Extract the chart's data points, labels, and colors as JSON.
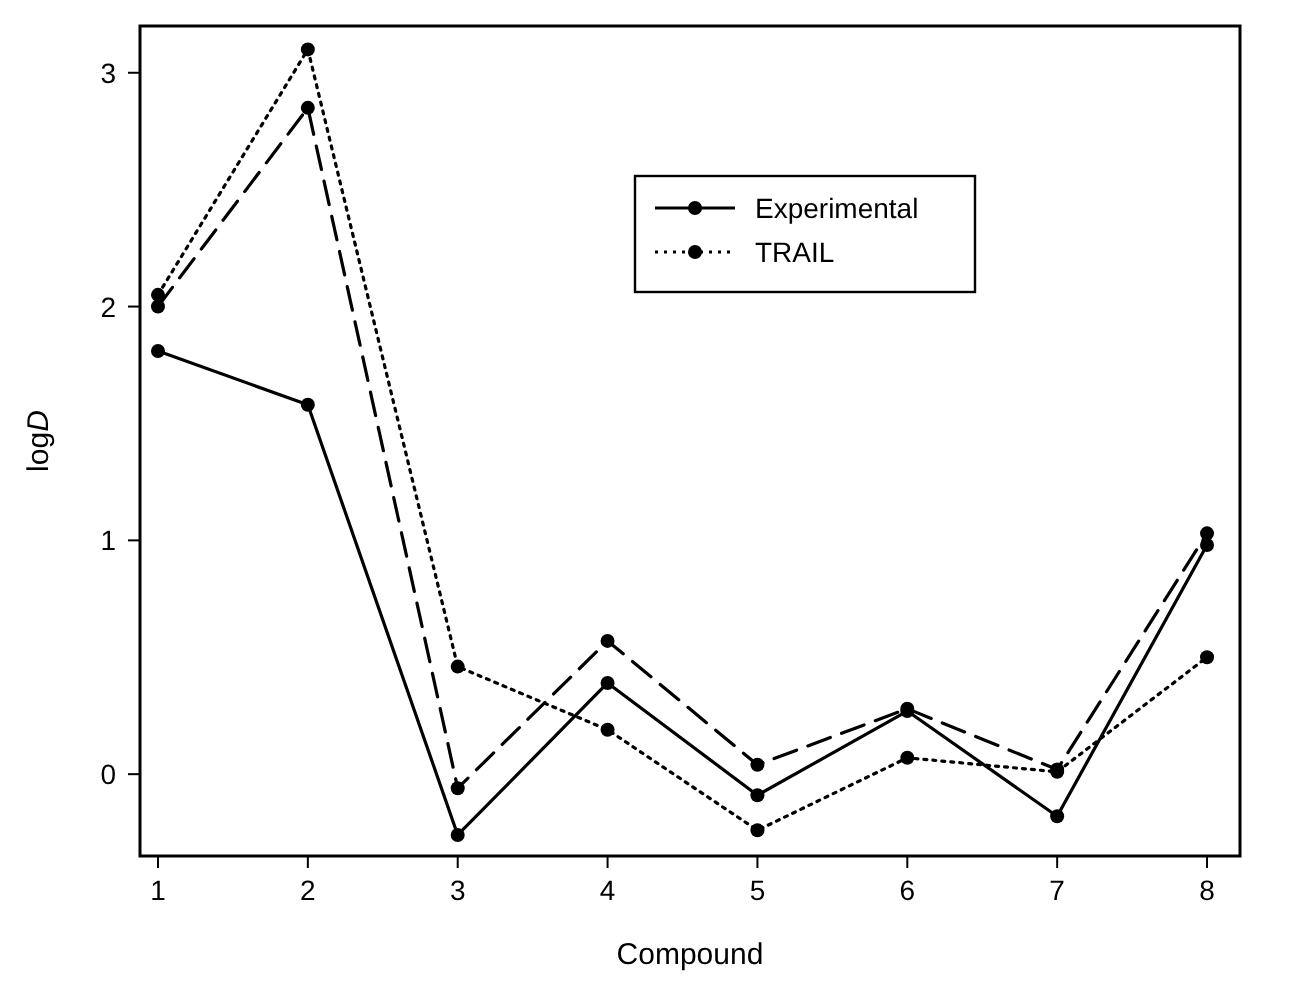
{
  "chart_data": {
    "type": "line",
    "xlabel": "Compound",
    "ylabel": "log$_{}$D",
    "x": [
      1,
      2,
      3,
      4,
      5,
      6,
      7,
      8
    ],
    "xlim": [
      0.88,
      8.22
    ],
    "xticks": [
      1,
      2,
      3,
      4,
      5,
      6,
      7,
      8
    ],
    "ylim": [
      -0.35,
      3.2
    ],
    "yticks": [
      0,
      1,
      2,
      3
    ],
    "legend": "top right",
    "grid": false,
    "marker": "circle",
    "series": [
      {
        "name": "Experimental",
        "color": "#000000",
        "line_style": "solid",
        "values": [
          1.81,
          1.58,
          -0.26,
          0.39,
          -0.09,
          0.27,
          -0.18,
          0.98
        ]
      },
      {
        "name": "TRAIL",
        "color": "#000000",
        "line_style": "dotted",
        "values": [
          2.05,
          3.1,
          0.46,
          0.19,
          -0.24,
          0.07,
          0.01,
          0.5
        ]
      },
      {
        "color": "#000000",
        "line_style": "dashed",
        "values": [
          2.0,
          2.85,
          -0.06,
          0.57,
          0.04,
          0.28,
          0.02,
          1.03
        ]
      }
    ]
  }
}
